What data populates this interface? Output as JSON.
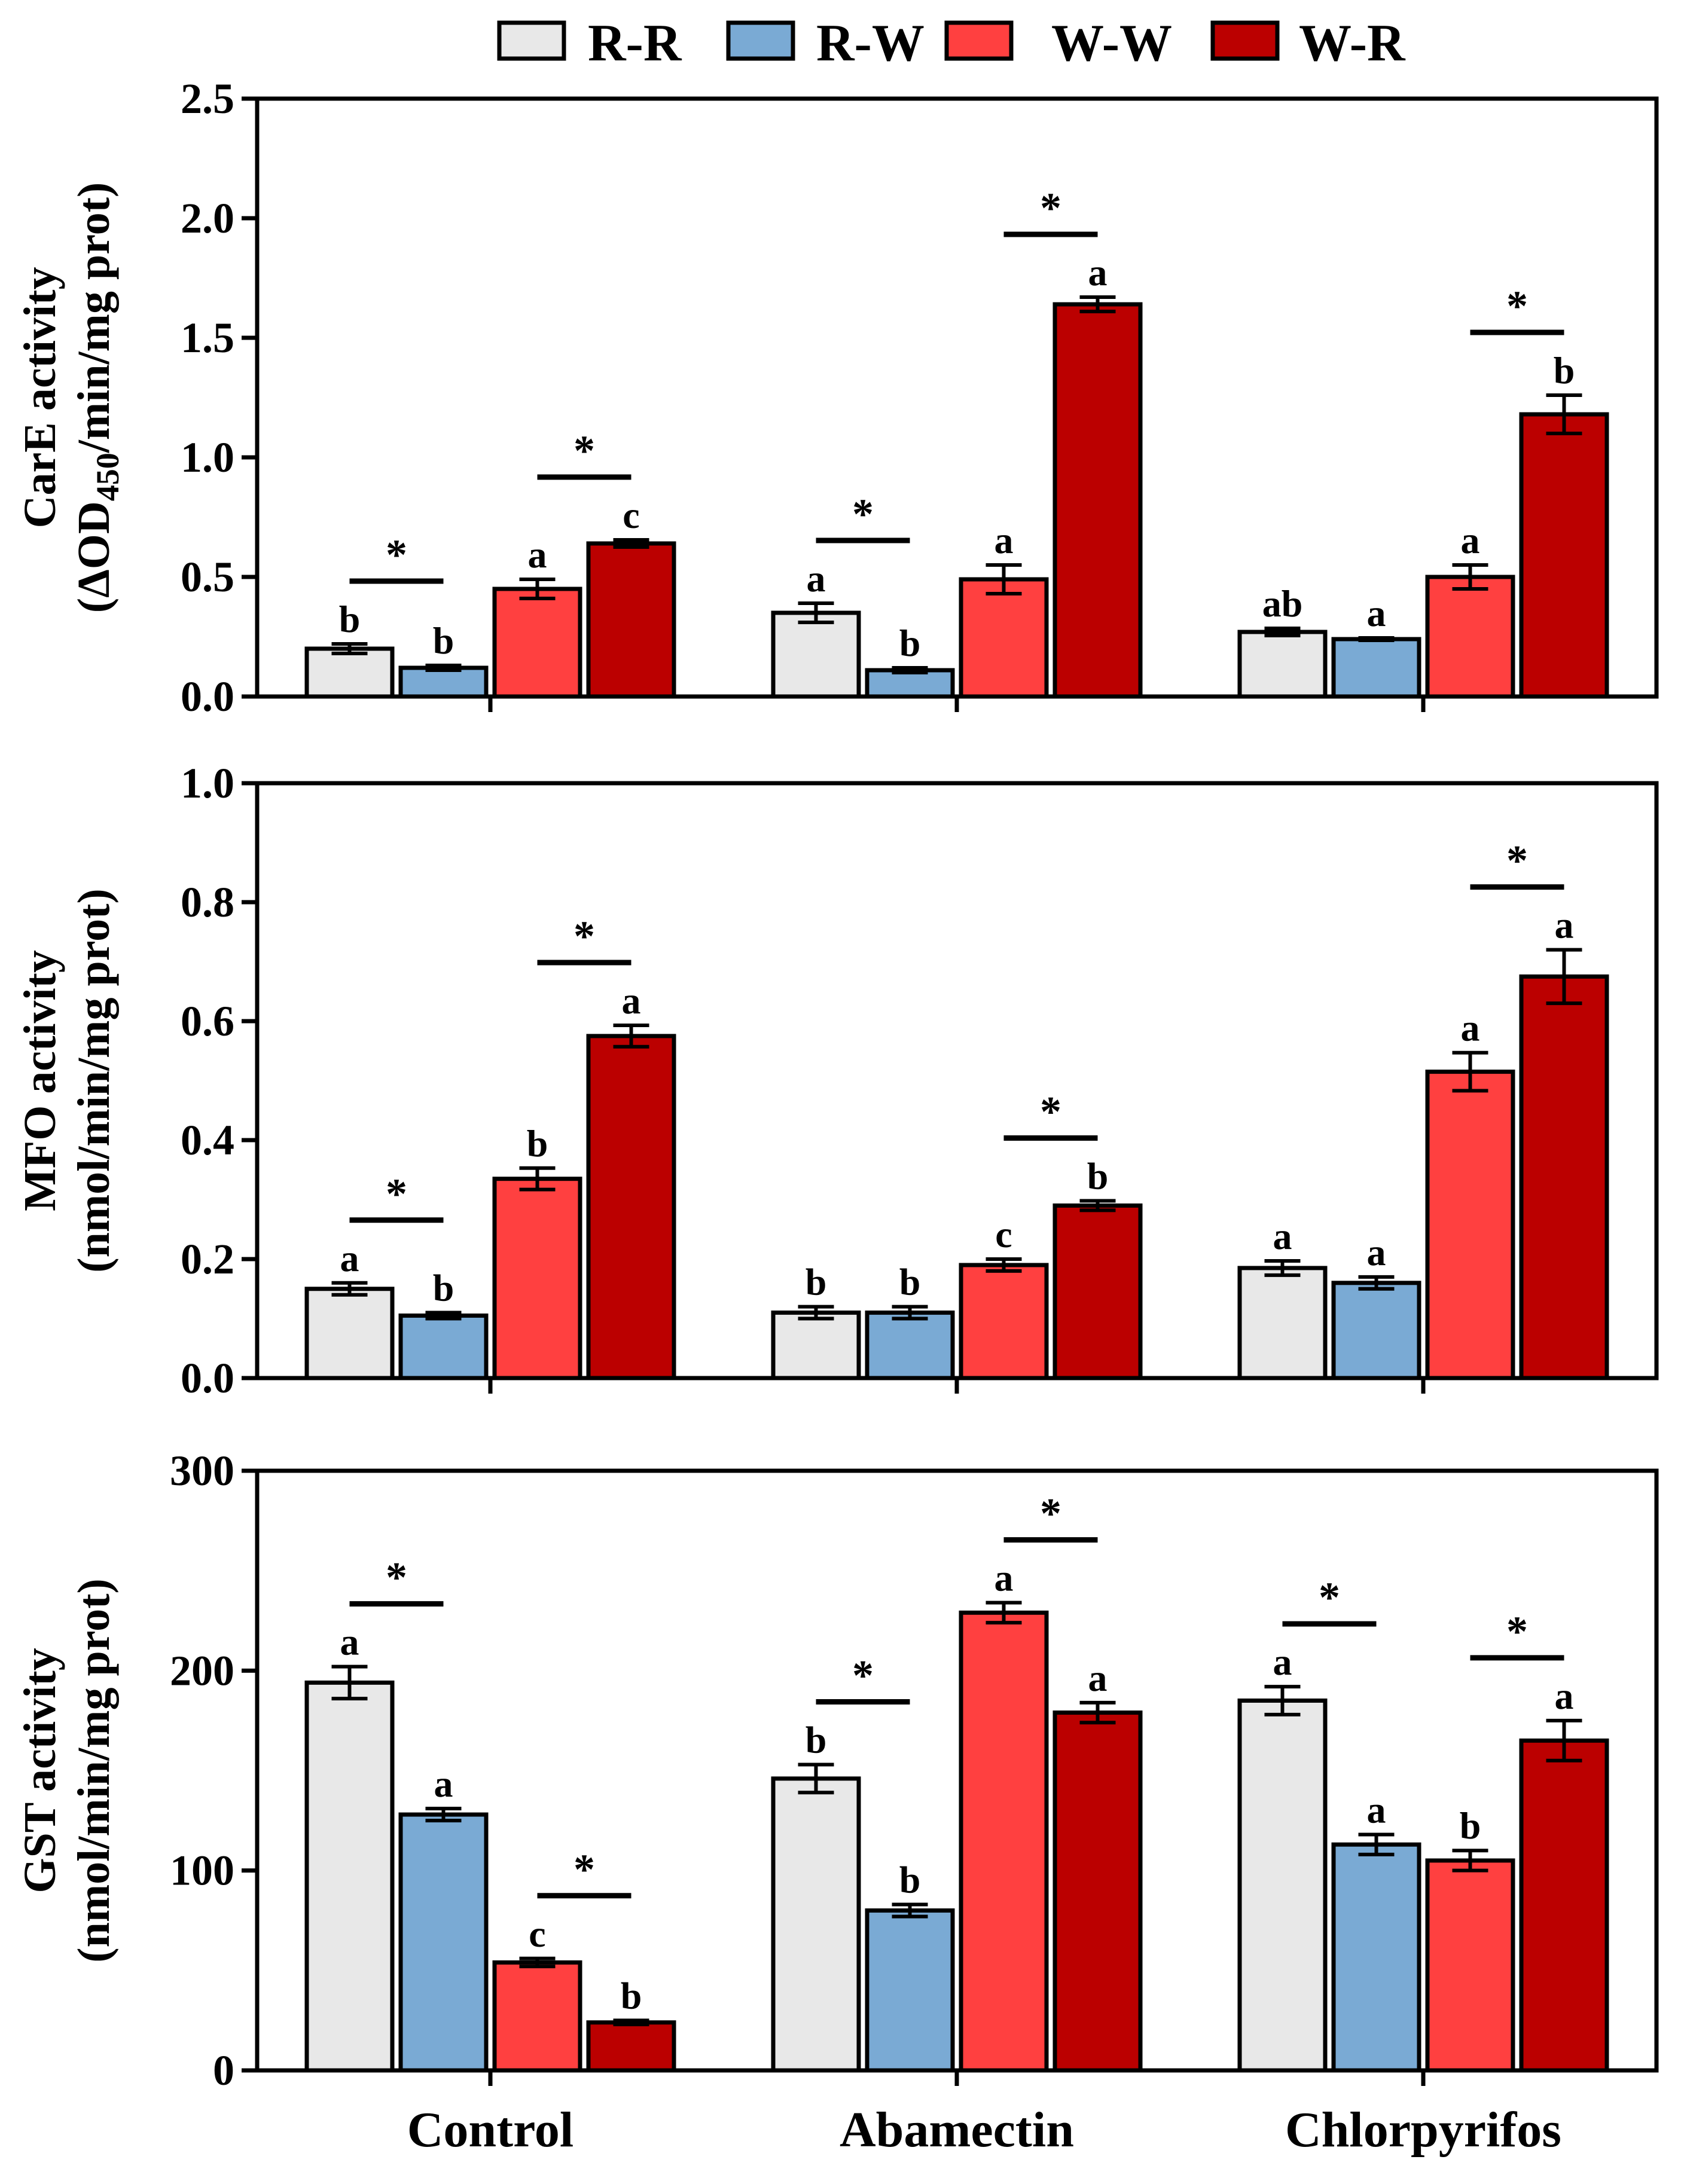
{
  "chart_data": {
    "type": "bar",
    "categories": [
      "Control",
      "Abamectin",
      "Chlorpyrifos"
    ],
    "legend": {
      "placement": "top",
      "entries": [
        {
          "name": "R-R",
          "color": "#e8e8e8"
        },
        {
          "name": "R-W",
          "color": "#7aaad4"
        },
        {
          "name": "W-W",
          "color": "#ff4040"
        },
        {
          "name": "W-R",
          "color": "#bb0000"
        }
      ]
    },
    "panels": [
      {
        "ylabel": [
          "CarE activity",
          "(ΔOD",
          "450",
          "/min/mg prot)"
        ],
        "ylim": [
          0,
          2.5
        ],
        "yticks": [
          0,
          0.5,
          1.0,
          1.5,
          2.0,
          2.5
        ],
        "tick_labels": [
          "0.0",
          "0.5",
          "1.0",
          "1.5",
          "2.0",
          "2.5"
        ],
        "series": [
          {
            "name": "R-R",
            "values": [
              0.2,
              0.35,
              0.27
            ],
            "errors": [
              0.02,
              0.04,
              0.015
            ],
            "letters": [
              "b",
              "a",
              "ab"
            ]
          },
          {
            "name": "R-W",
            "values": [
              0.12,
              0.11,
              0.24
            ],
            "errors": [
              0.01,
              0.01,
              0.005
            ],
            "letters": [
              "b",
              "b",
              "a"
            ]
          },
          {
            "name": "W-W",
            "values": [
              0.45,
              0.49,
              0.5
            ],
            "errors": [
              0.04,
              0.06,
              0.05
            ],
            "letters": [
              "a",
              "a",
              "a"
            ]
          },
          {
            "name": "W-R",
            "values": [
              0.64,
              1.64,
              1.18
            ],
            "errors": [
              0.015,
              0.03,
              0.08
            ],
            "letters": [
              "c",
              "a",
              "b"
            ]
          }
        ],
        "significance": [
          {
            "category": 0,
            "from": "R-R",
            "to": "R-W",
            "label": "*"
          },
          {
            "category": 0,
            "from": "W-W",
            "to": "W-R",
            "label": "*"
          },
          {
            "category": 1,
            "from": "R-R",
            "to": "R-W",
            "label": "*"
          },
          {
            "category": 1,
            "from": "W-W",
            "to": "W-R",
            "label": "*"
          },
          {
            "category": 2,
            "from": "W-W",
            "to": "W-R",
            "label": "*"
          }
        ]
      },
      {
        "ylabel": [
          "MFO activity",
          "(nmol/min/mg prot)"
        ],
        "ylim": [
          0,
          1.0
        ],
        "yticks": [
          0,
          0.2,
          0.4,
          0.6,
          0.8,
          1.0
        ],
        "tick_labels": [
          "0.0",
          "0.2",
          "0.4",
          "0.6",
          "0.8",
          "1.0"
        ],
        "series": [
          {
            "name": "R-R",
            "values": [
              0.15,
              0.11,
              0.185
            ],
            "errors": [
              0.01,
              0.01,
              0.012
            ],
            "letters": [
              "a",
              "b",
              "a"
            ]
          },
          {
            "name": "R-W",
            "values": [
              0.105,
              0.11,
              0.16
            ],
            "errors": [
              0.005,
              0.01,
              0.01
            ],
            "letters": [
              "b",
              "b",
              "a"
            ]
          },
          {
            "name": "W-W",
            "values": [
              0.335,
              0.19,
              0.515
            ],
            "errors": [
              0.018,
              0.01,
              0.032
            ],
            "letters": [
              "b",
              "c",
              "a"
            ]
          },
          {
            "name": "W-R",
            "values": [
              0.575,
              0.29,
              0.675
            ],
            "errors": [
              0.018,
              0.008,
              0.045
            ],
            "letters": [
              "a",
              "b",
              "a"
            ]
          }
        ],
        "significance": [
          {
            "category": 0,
            "from": "R-R",
            "to": "R-W",
            "label": "*"
          },
          {
            "category": 0,
            "from": "W-W",
            "to": "W-R",
            "label": "*"
          },
          {
            "category": 1,
            "from": "W-W",
            "to": "W-R",
            "label": "*"
          },
          {
            "category": 2,
            "from": "W-W",
            "to": "W-R",
            "label": "*"
          }
        ]
      },
      {
        "ylabel": [
          "GST activity",
          "(nmol/min/mg prot)"
        ],
        "ylim": [
          0,
          300
        ],
        "yticks": [
          0,
          100,
          200,
          300
        ],
        "tick_labels": [
          "0",
          "100",
          "200",
          "300"
        ],
        "series": [
          {
            "name": "R-R",
            "values": [
              194,
              146,
              185
            ],
            "errors": [
              8,
              7,
              7
            ],
            "letters": [
              "a",
              "b",
              "a"
            ]
          },
          {
            "name": "R-W",
            "values": [
              128,
              80,
              113
            ],
            "errors": [
              3,
              3,
              5
            ],
            "letters": [
              "a",
              "b",
              "a"
            ]
          },
          {
            "name": "W-W",
            "values": [
              54,
              229,
              105
            ],
            "errors": [
              2,
              5,
              5
            ],
            "letters": [
              "c",
              "a",
              "b"
            ]
          },
          {
            "name": "W-R",
            "values": [
              24,
              179,
              165
            ],
            "errors": [
              1,
              5,
              10
            ],
            "letters": [
              "b",
              "a",
              "a"
            ]
          }
        ],
        "significance": [
          {
            "category": 0,
            "from": "R-R",
            "to": "R-W",
            "label": "*"
          },
          {
            "category": 0,
            "from": "W-W",
            "to": "W-R",
            "label": "*"
          },
          {
            "category": 1,
            "from": "R-R",
            "to": "R-W",
            "label": "*"
          },
          {
            "category": 1,
            "from": "W-W",
            "to": "W-R",
            "label": "*"
          },
          {
            "category": 2,
            "from": "R-R",
            "to": "R-W",
            "label": "*"
          },
          {
            "category": 2,
            "from": "W-W",
            "to": "W-R",
            "label": "*"
          }
        ]
      }
    ]
  }
}
